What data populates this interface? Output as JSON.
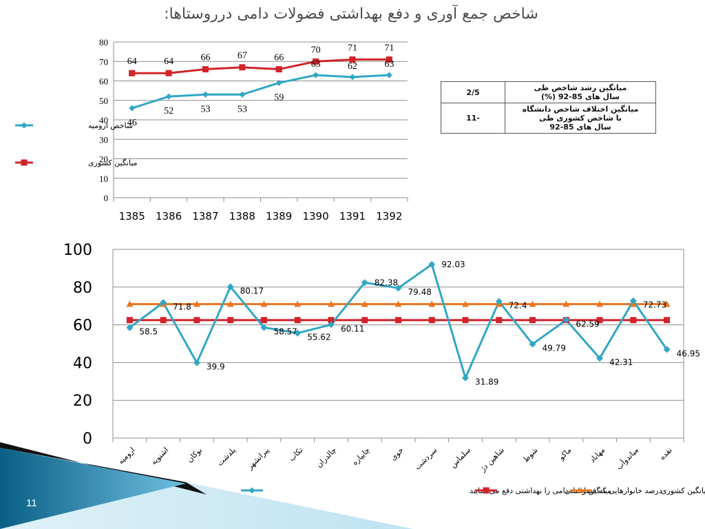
{
  "slide": {
    "title": "شاخص جمع آوری و دفع بهداشتی فضولات دامی درروستاها:",
    "page_number": "11"
  },
  "table": {
    "rows": [
      {
        "value": "2/5",
        "label_lines": [
          "میانگین رشد شاخص طی",
          "سال های 85-92 (%)"
        ]
      },
      {
        "value": "11-",
        "label_lines": [
          "میانگین اختلاف شاخص دانشگاه",
          "با شاخص کشوری طی",
          "سال های 85-92"
        ]
      }
    ]
  },
  "chart_data": [
    {
      "type": "line",
      "title": "",
      "xlabel": "",
      "ylabel": "",
      "categories": [
        "1385",
        "1386",
        "1387",
        "1388",
        "1389",
        "1390",
        "1391",
        "1392"
      ],
      "ylim": [
        0,
        80
      ],
      "yticks": [
        0,
        10,
        20,
        30,
        40,
        50,
        60,
        70,
        80
      ],
      "grid": true,
      "legend": "left",
      "series": [
        {
          "name": "شاخص ارومیه",
          "color": "#31a6c4",
          "marker": "diamond",
          "values": [
            46,
            52,
            53,
            53,
            59,
            63,
            62,
            63
          ],
          "labels": [
            "46",
            "52",
            "53",
            "53",
            "59",
            "63",
            "62",
            "63"
          ]
        },
        {
          "name": "میانگین کشوری",
          "color": "#d2232a",
          "marker": "square",
          "values": [
            64,
            64,
            66,
            67,
            66,
            70,
            71,
            71
          ],
          "labels": [
            "64",
            "64",
            "66",
            "67",
            "66",
            "70",
            "71",
            "71"
          ]
        }
      ]
    },
    {
      "type": "line",
      "title": "",
      "xlabel": "",
      "ylabel": "",
      "categories": [
        "ارومیه",
        "اشنویه",
        "بوکان",
        "پلدشت",
        "پیرانشهر",
        "تکاب",
        "چالدران",
        "چایپاره",
        "خوی",
        "سردشت",
        "سلماس",
        "شاهین دژ",
        "شوط",
        "ماکو",
        "مهاباد",
        "میاندوآب",
        "نقده"
      ],
      "ylim": [
        0,
        100
      ],
      "yticks": [
        0,
        20,
        40,
        60,
        80,
        100
      ],
      "grid": true,
      "legend": "bottom",
      "series": [
        {
          "name": "درصد خانوارهایی که فضولات دامی را بهداشتی دفع می نمایند",
          "color": "#31a6c4",
          "marker": "diamond",
          "values": [
            58.5,
            71.8,
            39.9,
            80.17,
            58.57,
            55.62,
            60.11,
            82.38,
            79.48,
            92.03,
            31.89,
            72.4,
            49.79,
            62.59,
            42.31,
            72.73,
            46.95
          ],
          "labels": [
            "58.5",
            "71.8",
            "39.9",
            "80.17",
            "58.57",
            "55.62",
            "60.11",
            "82.38",
            "79.48",
            "92.03",
            "31.89",
            "72.4",
            "49.79",
            "62.59",
            "42.31",
            "72.73",
            "46.95"
          ]
        },
        {
          "name": "میانگین استانی",
          "color": "#d2232a",
          "marker": "square",
          "values": [
            62.5,
            62.5,
            62.5,
            62.5,
            62.5,
            62.5,
            62.5,
            62.5,
            62.5,
            62.5,
            62.5,
            62.5,
            62.5,
            62.5,
            62.5,
            62.5,
            62.5
          ]
        },
        {
          "name": "میانگین کشوری",
          "color": "#e87722",
          "marker": "triangle",
          "values": [
            71,
            71,
            71,
            71,
            71,
            71,
            71,
            71,
            71,
            71,
            71,
            71,
            71,
            71,
            71,
            71,
            71
          ]
        }
      ]
    }
  ]
}
